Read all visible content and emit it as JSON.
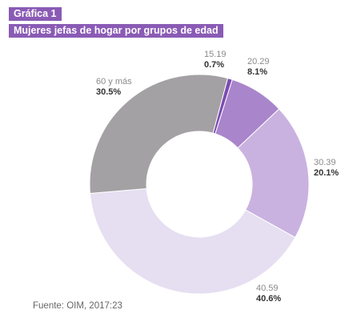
{
  "figure_label": "Gráfica 1",
  "title": "Mujeres jefas de hogar por grupos de edad",
  "source": "Fuente: OIM, 2017:23",
  "colors": {
    "header_bg": "#8a5bb5",
    "header_text": "#ffffff"
  },
  "chart_data": {
    "type": "pie",
    "donut": true,
    "title": "Mujeres jefas de hogar por grupos de edad",
    "categories": [
      "15.19",
      "20.29",
      "30.39",
      "40.59",
      "60 y más"
    ],
    "values": [
      0.7,
      8.1,
      20.1,
      40.6,
      30.5
    ],
    "value_labels": [
      "0.7%",
      "8.1%",
      "20.1%",
      "40.6%",
      "30.5%"
    ],
    "colors": [
      "#7b4cb1",
      "#a985cb",
      "#c9b2e0",
      "#e6def1",
      "#a3a1a4"
    ],
    "start_angle_deg": 15,
    "direction": "clockwise"
  }
}
